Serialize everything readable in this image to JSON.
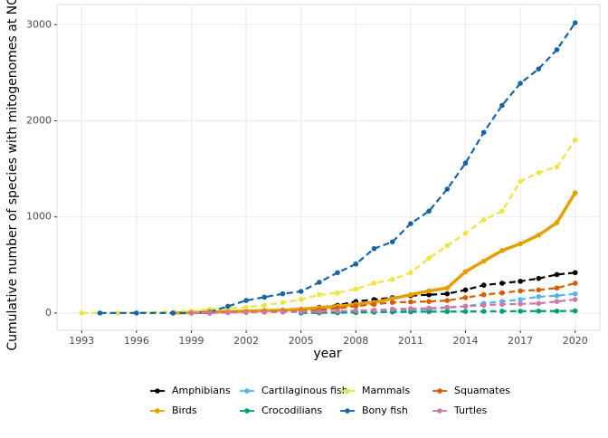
{
  "chart_data": {
    "type": "line",
    "x_label": "year",
    "y_label": "Cumulative number of species with mitogenomes at NCBI",
    "xlim": [
      1991.65,
      2021.35
    ],
    "ylim": [
      -180,
      3210
    ],
    "xticks": [
      1993,
      1996,
      1999,
      2002,
      2005,
      2008,
      2011,
      2014,
      2017,
      2020
    ],
    "yticks": [
      0,
      1000,
      2000,
      3000
    ],
    "grid": true,
    "legend": "bottom",
    "series": [
      {
        "name": "Amphibians",
        "color": "#000000",
        "linetype": "dashed",
        "x": [
          1998,
          1999,
          2000,
          2001,
          2002,
          2003,
          2004,
          2005,
          2006,
          2007,
          2008,
          2009,
          2010,
          2011,
          2012,
          2013,
          2014,
          2015,
          2016,
          2017,
          2018,
          2019,
          2020
        ],
        "values": [
          0,
          0,
          0,
          10,
          15,
          20,
          30,
          40,
          60,
          80,
          120,
          140,
          160,
          180,
          190,
          200,
          240,
          290,
          310,
          330,
          360,
          400,
          420
        ]
      },
      {
        "name": "Birds",
        "color": "#E69F00",
        "linetype": "solid",
        "x": [
          1998,
          1999,
          2000,
          2001,
          2002,
          2003,
          2004,
          2005,
          2006,
          2007,
          2008,
          2009,
          2010,
          2011,
          2012,
          2013,
          2014,
          2015,
          2016,
          2017,
          2018,
          2019,
          2020
        ],
        "values": [
          0,
          5,
          10,
          15,
          20,
          25,
          30,
          40,
          55,
          70,
          90,
          110,
          150,
          190,
          230,
          260,
          430,
          540,
          650,
          720,
          810,
          940,
          1250
        ]
      },
      {
        "name": "Cartilaginous fish",
        "color": "#56B4E9",
        "linetype": "dashed",
        "x": [
          2005,
          2006,
          2007,
          2008,
          2009,
          2010,
          2011,
          2012,
          2013,
          2014,
          2015,
          2016,
          2017,
          2018,
          2019,
          2020
        ],
        "values": [
          0,
          5,
          8,
          10,
          15,
          20,
          30,
          40,
          55,
          70,
          100,
          120,
          140,
          170,
          180,
          200
        ]
      },
      {
        "name": "Crocodilians",
        "color": "#009E73",
        "linetype": "dashed",
        "x": [
          2005,
          2006,
          2007,
          2008,
          2009,
          2010,
          2011,
          2012,
          2013,
          2014,
          2015,
          2016,
          2017,
          2018,
          2019,
          2020
        ],
        "values": [
          0,
          2,
          3,
          5,
          8,
          10,
          12,
          14,
          15,
          16,
          17,
          18,
          19,
          20,
          20,
          22
        ]
      },
      {
        "name": "Mammals",
        "color": "#F0E442",
        "linetype": "dashed",
        "x": [
          1993,
          1995,
          1999,
          2000,
          2001,
          2002,
          2003,
          2004,
          2005,
          2006,
          2007,
          2008,
          2009,
          2010,
          2011,
          2012,
          2013,
          2014,
          2015,
          2016,
          2017,
          2018,
          2019,
          2020
        ],
        "values": [
          0,
          0,
          20,
          40,
          50,
          60,
          80,
          110,
          140,
          190,
          210,
          250,
          310,
          350,
          420,
          570,
          700,
          830,
          970,
          1060,
          1370,
          1460,
          1520,
          1800
        ]
      },
      {
        "name": "Bony fish",
        "color": "#1565A8",
        "linetype": "dashed",
        "x": [
          1994,
          1996,
          1998,
          1999,
          2000,
          2001,
          2002,
          2003,
          2004,
          2005,
          2006,
          2007,
          2008,
          2009,
          2010,
          2011,
          2012,
          2013,
          2014,
          2015,
          2016,
          2017,
          2018,
          2019,
          2020
        ],
        "values": [
          0,
          0,
          0,
          0,
          10,
          70,
          130,
          165,
          200,
          225,
          320,
          420,
          510,
          670,
          740,
          930,
          1060,
          1290,
          1560,
          1880,
          2160,
          2390,
          2540,
          2740,
          3020
        ]
      },
      {
        "name": "Squamates",
        "color": "#D55E00",
        "linetype": "dashed",
        "x": [
          1999,
          2000,
          2001,
          2002,
          2003,
          2004,
          2005,
          2006,
          2007,
          2008,
          2009,
          2010,
          2011,
          2012,
          2013,
          2014,
          2015,
          2016,
          2017,
          2018,
          2019,
          2020
        ],
        "values": [
          0,
          5,
          8,
          10,
          12,
          15,
          20,
          30,
          50,
          70,
          90,
          110,
          115,
          120,
          130,
          160,
          190,
          210,
          230,
          240,
          260,
          310
        ]
      },
      {
        "name": "Turtles",
        "color": "#CC79A7",
        "linetype": "dashed",
        "x": [
          1999,
          2000,
          2001,
          2002,
          2003,
          2004,
          2005,
          2006,
          2007,
          2008,
          2009,
          2010,
          2011,
          2012,
          2013,
          2014,
          2015,
          2016,
          2017,
          2018,
          2019,
          2020
        ],
        "values": [
          0,
          2,
          4,
          6,
          8,
          10,
          12,
          15,
          20,
          25,
          30,
          40,
          45,
          50,
          60,
          70,
          80,
          90,
          95,
          100,
          120,
          140
        ]
      }
    ]
  }
}
